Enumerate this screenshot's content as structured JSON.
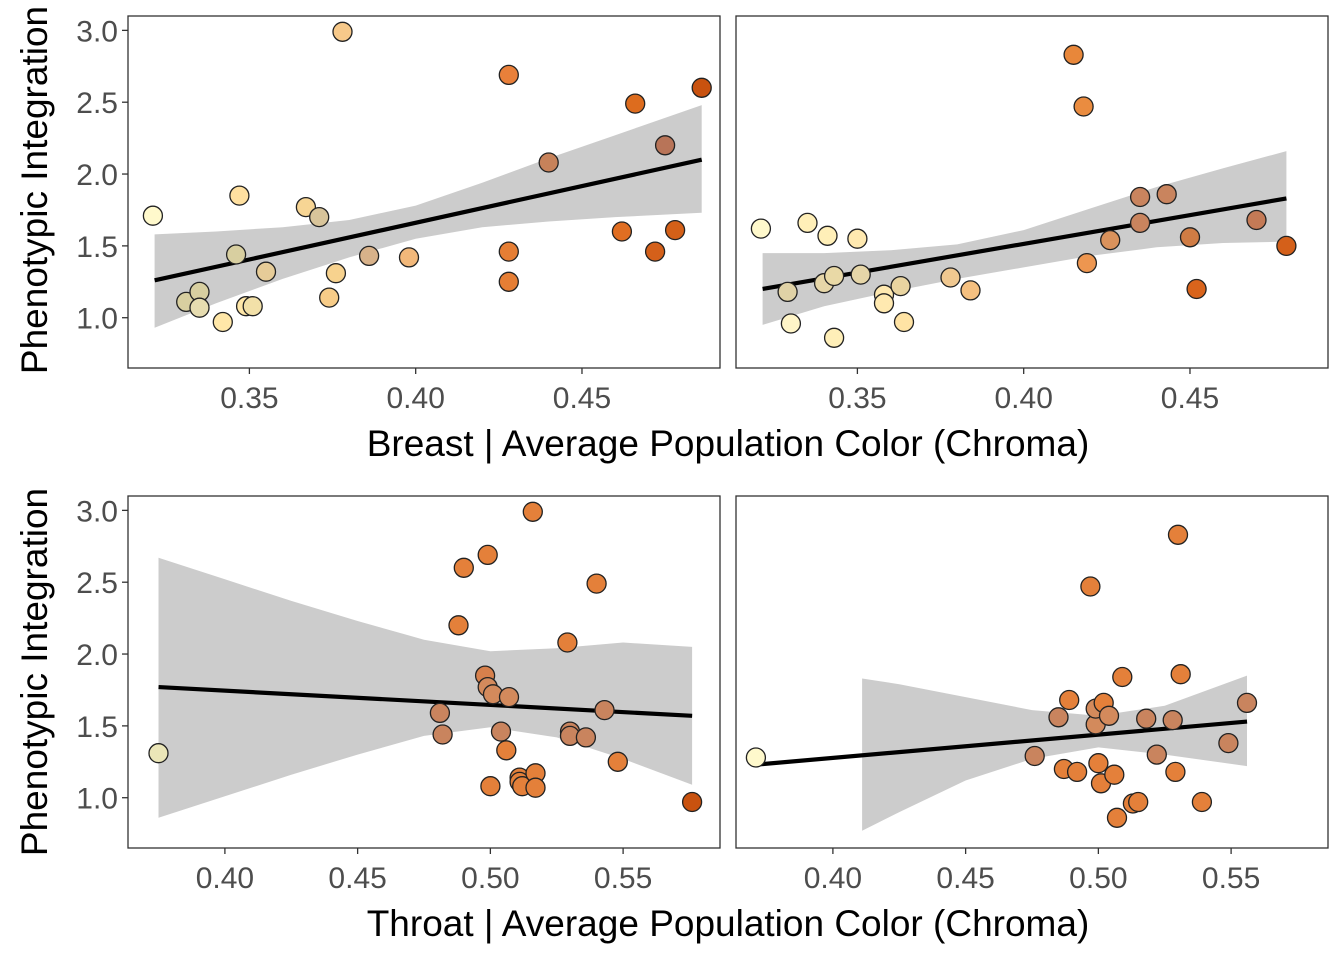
{
  "colors": {
    "ribbon": "#cccccc",
    "fit_line": "#000000",
    "point_outline": "#222222",
    "panel_border": "#333333",
    "color_scale": [
      "#fff7c0",
      "#f4c98a",
      "#e98b3a",
      "#c9520f"
    ],
    "greyish_points": "#b0916e"
  },
  "rows": [
    {
      "xlabel": "Breast | Average Population Color (Chroma)",
      "ylabel": "Phenotypic Integration"
    },
    {
      "xlabel": "Throat | Average Population Color (Chroma)",
      "ylabel": "Phenotypic Integration"
    }
  ],
  "chart_data": [
    {
      "type": "scatter",
      "panel": "breast-left",
      "xlim": [
        0.3135,
        0.4915
      ],
      "ylim": [
        0.65,
        3.1
      ],
      "xticks": [
        0.35,
        0.4,
        0.45
      ],
      "xtick_labels": [
        "0.35",
        "0.40",
        "0.45"
      ],
      "yticks": [
        1.0,
        1.5,
        2.0,
        2.5,
        3.0
      ],
      "ytick_labels": [
        "1.0",
        "1.5",
        "2.0",
        "2.5",
        "3.0"
      ],
      "show_yticks": true,
      "points": [
        {
          "x": 0.321,
          "y": 1.71,
          "c": "#fff9cc"
        },
        {
          "x": 0.331,
          "y": 1.11,
          "c": "#d8cfa0"
        },
        {
          "x": 0.335,
          "y": 1.18,
          "c": "#d8cfa0"
        },
        {
          "x": 0.335,
          "y": 1.07,
          "c": "#e6dcb0"
        },
        {
          "x": 0.342,
          "y": 0.97,
          "c": "#ffe7a8"
        },
        {
          "x": 0.346,
          "y": 1.44,
          "c": "#d8cfa0"
        },
        {
          "x": 0.347,
          "y": 1.85,
          "c": "#ffe0a0"
        },
        {
          "x": 0.349,
          "y": 1.08,
          "c": "#ffe7a8"
        },
        {
          "x": 0.351,
          "y": 1.08,
          "c": "#f2e0a8"
        },
        {
          "x": 0.355,
          "y": 1.32,
          "c": "#e6cc98"
        },
        {
          "x": 0.367,
          "y": 1.77,
          "c": "#f7d594"
        },
        {
          "x": 0.371,
          "y": 1.7,
          "c": "#d8c49a"
        },
        {
          "x": 0.374,
          "y": 1.14,
          "c": "#f7cc88"
        },
        {
          "x": 0.376,
          "y": 1.31,
          "c": "#f7d28e"
        },
        {
          "x": 0.378,
          "y": 2.99,
          "c": "#f7c98a"
        },
        {
          "x": 0.386,
          "y": 1.43,
          "c": "#d8b28a"
        },
        {
          "x": 0.398,
          "y": 1.42,
          "c": "#f2b87a"
        },
        {
          "x": 0.428,
          "y": 2.69,
          "c": "#e9803a"
        },
        {
          "x": 0.428,
          "y": 1.46,
          "c": "#e67e34"
        },
        {
          "x": 0.428,
          "y": 1.25,
          "c": "#e67e34"
        },
        {
          "x": 0.44,
          "y": 2.08,
          "c": "#c7825a"
        },
        {
          "x": 0.462,
          "y": 1.6,
          "c": "#e06e22"
        },
        {
          "x": 0.466,
          "y": 2.49,
          "c": "#dd6c1e"
        },
        {
          "x": 0.472,
          "y": 1.46,
          "c": "#d4601a"
        },
        {
          "x": 0.475,
          "y": 2.2,
          "c": "#b87458"
        },
        {
          "x": 0.478,
          "y": 1.61,
          "c": "#d46018"
        },
        {
          "x": 0.486,
          "y": 2.6,
          "c": "#c9520f"
        }
      ],
      "fit": {
        "x0": 0.3215,
        "y0": 1.26,
        "x1": 0.486,
        "y1": 2.1
      },
      "ribbon": {
        "x": [
          0.3215,
          0.34,
          0.36,
          0.38,
          0.4,
          0.42,
          0.44,
          0.46,
          0.486
        ],
        "lower": [
          0.93,
          1.1,
          1.27,
          1.42,
          1.55,
          1.63,
          1.67,
          1.7,
          1.73
        ],
        "upper": [
          1.58,
          1.6,
          1.63,
          1.68,
          1.78,
          1.94,
          2.11,
          2.27,
          2.48
        ]
      }
    },
    {
      "type": "scatter",
      "panel": "breast-right",
      "xlim": [
        0.3135,
        0.4915
      ],
      "ylim": [
        0.65,
        3.1
      ],
      "xticks": [
        0.35,
        0.4,
        0.45
      ],
      "xtick_labels": [
        "0.35",
        "0.40",
        "0.45"
      ],
      "yticks": [
        1.0,
        1.5,
        2.0,
        2.5,
        3.0
      ],
      "ytick_labels": [],
      "show_yticks": false,
      "points": [
        {
          "x": 0.321,
          "y": 1.62,
          "c": "#fff9cc"
        },
        {
          "x": 0.329,
          "y": 1.18,
          "c": "#e0d2a6"
        },
        {
          "x": 0.33,
          "y": 0.96,
          "c": "#fff5c8"
        },
        {
          "x": 0.335,
          "y": 1.66,
          "c": "#ffefb8"
        },
        {
          "x": 0.34,
          "y": 1.24,
          "c": "#e6d6a8"
        },
        {
          "x": 0.341,
          "y": 1.57,
          "c": "#ffefb8"
        },
        {
          "x": 0.343,
          "y": 1.29,
          "c": "#e9d9a6"
        },
        {
          "x": 0.343,
          "y": 0.86,
          "c": "#ffefb8"
        },
        {
          "x": 0.35,
          "y": 1.55,
          "c": "#ffe9b0"
        },
        {
          "x": 0.351,
          "y": 1.3,
          "c": "#e6d6a8"
        },
        {
          "x": 0.358,
          "y": 1.16,
          "c": "#ffe9b0"
        },
        {
          "x": 0.358,
          "y": 1.1,
          "c": "#ffe9b0"
        },
        {
          "x": 0.363,
          "y": 1.22,
          "c": "#e9d4a0"
        },
        {
          "x": 0.364,
          "y": 0.97,
          "c": "#ffe3a4"
        },
        {
          "x": 0.378,
          "y": 1.28,
          "c": "#f0c890"
        },
        {
          "x": 0.384,
          "y": 1.19,
          "c": "#f5c080"
        },
        {
          "x": 0.415,
          "y": 2.83,
          "c": "#e8873a"
        },
        {
          "x": 0.418,
          "y": 2.47,
          "c": "#ea8c40"
        },
        {
          "x": 0.419,
          "y": 1.38,
          "c": "#ed9650"
        },
        {
          "x": 0.426,
          "y": 1.54,
          "c": "#d9925c"
        },
        {
          "x": 0.435,
          "y": 1.84,
          "c": "#c9845e"
        },
        {
          "x": 0.435,
          "y": 1.66,
          "c": "#c9845e"
        },
        {
          "x": 0.443,
          "y": 1.86,
          "c": "#c9845e"
        },
        {
          "x": 0.45,
          "y": 1.56,
          "c": "#d07c44"
        },
        {
          "x": 0.452,
          "y": 1.2,
          "c": "#d9641c"
        },
        {
          "x": 0.47,
          "y": 1.68,
          "c": "#c47a56"
        },
        {
          "x": 0.479,
          "y": 1.5,
          "c": "#d4601a"
        }
      ],
      "fit": {
        "x0": 0.3215,
        "y0": 1.2,
        "x1": 0.479,
        "y1": 1.83
      },
      "ribbon": {
        "x": [
          0.3215,
          0.34,
          0.36,
          0.38,
          0.4,
          0.42,
          0.44,
          0.46,
          0.479
        ],
        "lower": [
          0.95,
          1.08,
          1.18,
          1.27,
          1.35,
          1.43,
          1.49,
          1.52,
          1.53
        ],
        "upper": [
          1.45,
          1.45,
          1.47,
          1.51,
          1.61,
          1.76,
          1.91,
          2.04,
          2.16
        ]
      }
    },
    {
      "type": "scatter",
      "panel": "throat-left",
      "xlim": [
        0.3635,
        0.5865
      ],
      "ylim": [
        0.65,
        3.1
      ],
      "xticks": [
        0.4,
        0.45,
        0.5,
        0.55
      ],
      "xtick_labels": [
        "0.40",
        "0.45",
        "0.50",
        "0.55"
      ],
      "yticks": [
        1.0,
        1.5,
        2.0,
        2.5,
        3.0
      ],
      "ytick_labels": [
        "1.0",
        "1.5",
        "2.0",
        "2.5",
        "3.0"
      ],
      "show_yticks": true,
      "points": [
        {
          "x": 0.375,
          "y": 1.31,
          "c": "#ebe6b8"
        },
        {
          "x": 0.481,
          "y": 1.59,
          "c": "#c9845e"
        },
        {
          "x": 0.482,
          "y": 1.44,
          "c": "#c9845e"
        },
        {
          "x": 0.488,
          "y": 2.2,
          "c": "#e4803a"
        },
        {
          "x": 0.49,
          "y": 2.6,
          "c": "#e4803a"
        },
        {
          "x": 0.498,
          "y": 1.85,
          "c": "#d7804c"
        },
        {
          "x": 0.499,
          "y": 1.77,
          "c": "#d38a5c"
        },
        {
          "x": 0.499,
          "y": 2.69,
          "c": "#e4803a"
        },
        {
          "x": 0.5,
          "y": 1.08,
          "c": "#e4803a"
        },
        {
          "x": 0.501,
          "y": 1.72,
          "c": "#d38a5c"
        },
        {
          "x": 0.504,
          "y": 1.46,
          "c": "#c9845e"
        },
        {
          "x": 0.506,
          "y": 1.33,
          "c": "#e4803a"
        },
        {
          "x": 0.507,
          "y": 1.7,
          "c": "#d38a5c"
        },
        {
          "x": 0.511,
          "y": 1.14,
          "c": "#e4803a"
        },
        {
          "x": 0.511,
          "y": 1.11,
          "c": "#e4803a"
        },
        {
          "x": 0.512,
          "y": 1.08,
          "c": "#e4803a"
        },
        {
          "x": 0.516,
          "y": 2.99,
          "c": "#e4803a"
        },
        {
          "x": 0.517,
          "y": 1.17,
          "c": "#e4803a"
        },
        {
          "x": 0.517,
          "y": 1.07,
          "c": "#e4803a"
        },
        {
          "x": 0.529,
          "y": 2.08,
          "c": "#e4803a"
        },
        {
          "x": 0.53,
          "y": 1.46,
          "c": "#c9845e"
        },
        {
          "x": 0.53,
          "y": 1.43,
          "c": "#c9845e"
        },
        {
          "x": 0.536,
          "y": 1.42,
          "c": "#c9845e"
        },
        {
          "x": 0.54,
          "y": 2.49,
          "c": "#e4803a"
        },
        {
          "x": 0.543,
          "y": 1.61,
          "c": "#c9845e"
        },
        {
          "x": 0.548,
          "y": 1.25,
          "c": "#e4803a"
        },
        {
          "x": 0.576,
          "y": 0.97,
          "c": "#c9520f"
        }
      ],
      "fit": {
        "x0": 0.375,
        "y0": 1.77,
        "x1": 0.576,
        "y1": 1.57
      },
      "ribbon": {
        "x": [
          0.375,
          0.4,
          0.425,
          0.45,
          0.475,
          0.5,
          0.525,
          0.55,
          0.576
        ],
        "lower": [
          0.86,
          1.01,
          1.16,
          1.3,
          1.43,
          1.49,
          1.42,
          1.27,
          1.09
        ],
        "upper": [
          2.67,
          2.52,
          2.37,
          2.23,
          2.1,
          2.02,
          2.04,
          2.08,
          2.05
        ]
      }
    },
    {
      "type": "scatter",
      "panel": "throat-right",
      "xlim": [
        0.3635,
        0.5865
      ],
      "ylim": [
        0.65,
        3.1
      ],
      "xticks": [
        0.4,
        0.45,
        0.5,
        0.55
      ],
      "xtick_labels": [
        "0.40",
        "0.45",
        "0.50",
        "0.55"
      ],
      "yticks": [
        1.0,
        1.5,
        2.0,
        2.5,
        3.0
      ],
      "ytick_labels": [],
      "show_yticks": false,
      "points": [
        {
          "x": 0.371,
          "y": 1.28,
          "c": "#fff9cc"
        },
        {
          "x": 0.476,
          "y": 1.29,
          "c": "#c9845e"
        },
        {
          "x": 0.485,
          "y": 1.56,
          "c": "#c9845e"
        },
        {
          "x": 0.487,
          "y": 1.2,
          "c": "#e4803a"
        },
        {
          "x": 0.489,
          "y": 1.68,
          "c": "#e4803a"
        },
        {
          "x": 0.492,
          "y": 1.18,
          "c": "#e4803a"
        },
        {
          "x": 0.497,
          "y": 2.47,
          "c": "#e4803a"
        },
        {
          "x": 0.499,
          "y": 1.51,
          "c": "#d38a5c"
        },
        {
          "x": 0.499,
          "y": 1.62,
          "c": "#d38a5c"
        },
        {
          "x": 0.5,
          "y": 1.24,
          "c": "#e4803a"
        },
        {
          "x": 0.501,
          "y": 1.1,
          "c": "#e4803a"
        },
        {
          "x": 0.502,
          "y": 1.66,
          "c": "#e4803a"
        },
        {
          "x": 0.504,
          "y": 1.57,
          "c": "#d38a5c"
        },
        {
          "x": 0.506,
          "y": 1.16,
          "c": "#e4803a"
        },
        {
          "x": 0.507,
          "y": 0.86,
          "c": "#e4803a"
        },
        {
          "x": 0.509,
          "y": 1.84,
          "c": "#e4803a"
        },
        {
          "x": 0.513,
          "y": 0.96,
          "c": "#e4803a"
        },
        {
          "x": 0.515,
          "y": 0.97,
          "c": "#e4803a"
        },
        {
          "x": 0.518,
          "y": 1.55,
          "c": "#c9845e"
        },
        {
          "x": 0.522,
          "y": 1.3,
          "c": "#c9845e"
        },
        {
          "x": 0.528,
          "y": 1.54,
          "c": "#c9845e"
        },
        {
          "x": 0.529,
          "y": 1.18,
          "c": "#e4803a"
        },
        {
          "x": 0.53,
          "y": 2.83,
          "c": "#e4803a"
        },
        {
          "x": 0.531,
          "y": 1.86,
          "c": "#e4803a"
        },
        {
          "x": 0.539,
          "y": 0.97,
          "c": "#e4803a"
        },
        {
          "x": 0.549,
          "y": 1.38,
          "c": "#c9845e"
        },
        {
          "x": 0.556,
          "y": 1.66,
          "c": "#c9845e"
        }
      ],
      "fit": {
        "x0": 0.371,
        "y0": 1.23,
        "x1": 0.556,
        "y1": 1.53
      },
      "ribbon": {
        "x": [
          0.411,
          0.425,
          0.45,
          0.475,
          0.5,
          0.525,
          0.556
        ],
        "lower": [
          0.77,
          0.9,
          1.12,
          1.27,
          1.35,
          1.3,
          1.22
        ],
        "upper": [
          1.83,
          1.79,
          1.7,
          1.61,
          1.57,
          1.64,
          1.85
        ]
      }
    }
  ]
}
